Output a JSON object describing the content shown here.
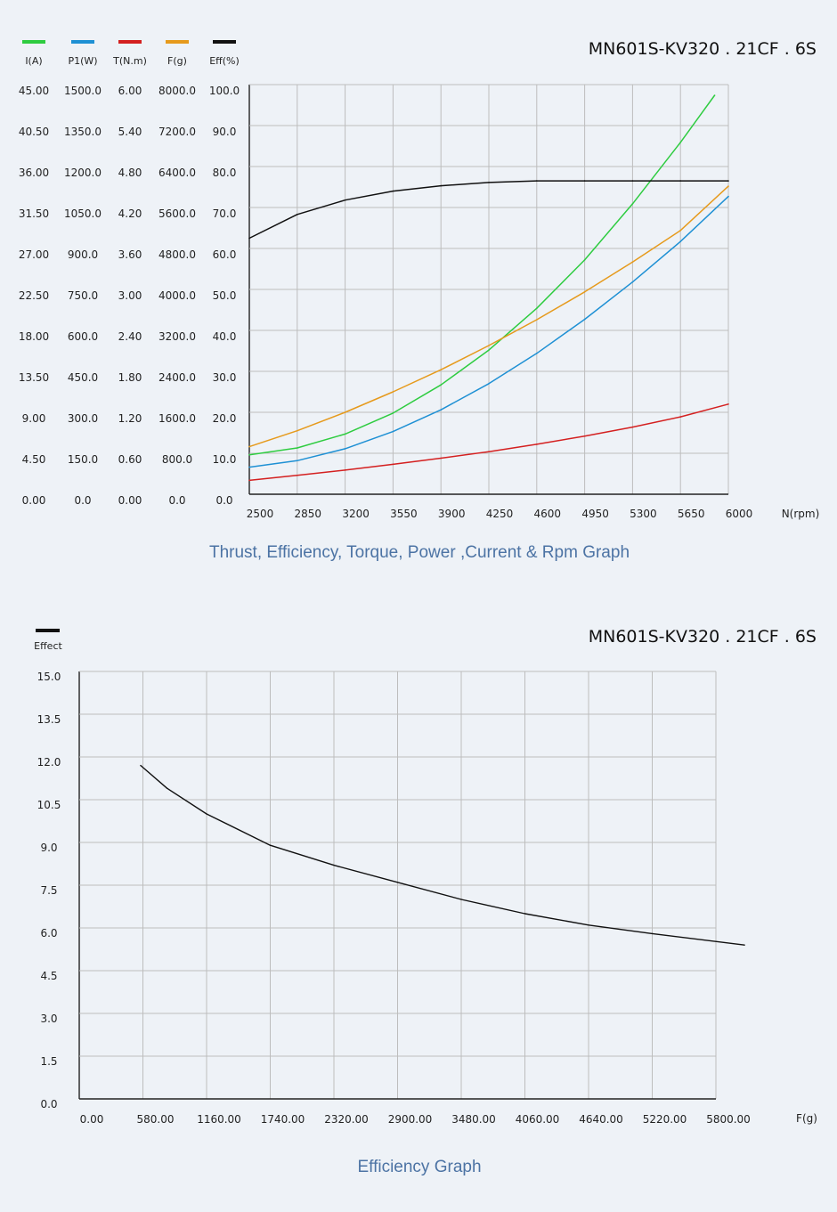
{
  "chart_data": [
    {
      "type": "line",
      "title": "MN601S-KV320 . 21CF . 6S",
      "caption": "Thrust, Efficiency, Torque, Power ,Current & Rpm Graph",
      "xlabel": "N(rpm)",
      "xlim": [
        2500,
        6000
      ],
      "x_ticks": [
        "2500",
        "2850",
        "3200",
        "3550",
        "3900",
        "4250",
        "4600",
        "4950",
        "5300",
        "5650",
        "6000"
      ],
      "axes": [
        {
          "label": "I(A)",
          "color": "#2ecc40",
          "ticks": [
            "45.00",
            "40.50",
            "36.00",
            "31.50",
            "27.00",
            "22.50",
            "18.00",
            "13.50",
            "9.00",
            "4.50",
            "0.00"
          ]
        },
        {
          "label": "P1(W)",
          "color": "#1e90d4",
          "ticks": [
            "1500.0",
            "1350.0",
            "1200.0",
            "1050.0",
            "900.0",
            "750.0",
            "600.0",
            "450.0",
            "300.0",
            "150.0",
            "0.0"
          ]
        },
        {
          "label": "T(N.m)",
          "color": "#d42020",
          "ticks": [
            "6.00",
            "5.40",
            "4.80",
            "4.20",
            "3.60",
            "3.00",
            "2.40",
            "1.80",
            "1.20",
            "0.60",
            "0.00"
          ]
        },
        {
          "label": "F(g)",
          "color": "#e69a1c",
          "ticks": [
            "8000.0",
            "7200.0",
            "6400.0",
            "5600.0",
            "4800.0",
            "4000.0",
            "3200.0",
            "2400.0",
            "1600.0",
            "800.0",
            "0.0"
          ]
        },
        {
          "label": "Eff(%)",
          "color": "#111111",
          "ticks": [
            "100.0",
            "90.0",
            "80.0",
            "70.0",
            "60.0",
            "50.0",
            "40.0",
            "30.0",
            "20.0",
            "10.0",
            "0.0"
          ]
        }
      ],
      "series": [
        {
          "name": "I(A)",
          "color": "#2ecc40",
          "ymax": 45,
          "x": [
            2500,
            2850,
            3200,
            3550,
            3900,
            4250,
            4600,
            4950,
            5300,
            5650,
            5900
          ],
          "y": [
            9.6,
            11.3,
            14.7,
            19.8,
            26.7,
            35.2,
            45.4,
            57.2,
            70.9,
            85.9,
            97.4
          ],
          "y_scale": "percent_of_axis"
        },
        {
          "name": "P1(W)",
          "color": "#1e90d4",
          "ymax": 1500,
          "x": [
            2500,
            2850,
            3200,
            3550,
            3900,
            4250,
            4600,
            4950,
            5300,
            5650,
            6000
          ],
          "y": [
            6.6,
            8.2,
            11.1,
            15.3,
            20.6,
            27.0,
            34.4,
            42.7,
            51.8,
            61.7,
            72.7
          ],
          "y_scale": "percent_of_axis"
        },
        {
          "name": "T(N.m)",
          "color": "#d42020",
          "ymax": 6,
          "x": [
            2500,
            2850,
            3200,
            3550,
            3900,
            4250,
            4600,
            4950,
            5300,
            5650,
            6000
          ],
          "y": [
            3.4,
            4.6,
            5.9,
            7.3,
            8.8,
            10.4,
            12.2,
            14.2,
            16.4,
            18.9,
            22.0
          ],
          "y_scale": "percent_of_axis"
        },
        {
          "name": "F(g)",
          "color": "#e69a1c",
          "ymax": 8000,
          "x": [
            2500,
            2850,
            3200,
            3550,
            3900,
            4250,
            4600,
            4950,
            5300,
            5650,
            6000
          ],
          "y": [
            11.6,
            15.5,
            20.0,
            25.0,
            30.4,
            36.3,
            42.6,
            49.4,
            56.7,
            64.4,
            75.2
          ],
          "y_scale": "percent_of_axis"
        },
        {
          "name": "Eff(%)",
          "color": "#111111",
          "ymax": 100,
          "x": [
            2500,
            2850,
            3200,
            3550,
            3900,
            4250,
            4600,
            4950,
            5300,
            5650,
            6000
          ],
          "y": [
            62.5,
            68.3,
            71.8,
            74.0,
            75.3,
            76.1,
            76.5,
            76.5,
            76.5,
            76.5,
            76.5
          ],
          "y_scale": "percent_of_axis"
        }
      ]
    },
    {
      "type": "line",
      "title": "MN601S-KV320 . 21CF . 6S",
      "caption": "Efficiency Graph",
      "xlabel": "F(g)",
      "ylabel": "Effect",
      "legend_color": "#111111",
      "xlim": [
        0,
        5800
      ],
      "ylim": [
        0,
        15
      ],
      "x_ticks": [
        "0.00",
        "580.00",
        "1160.00",
        "1740.00",
        "2320.00",
        "2900.00",
        "3480.00",
        "4060.00",
        "4640.00",
        "5220.00",
        "5800.00"
      ],
      "y_ticks": [
        "15.0",
        "13.5",
        "12.0",
        "10.5",
        "9.0",
        "7.5",
        "6.0",
        "4.5",
        "3.0",
        "1.5",
        "0.0"
      ],
      "series": [
        {
          "name": "Effect",
          "color": "#111111",
          "x": [
            560,
            800,
            1160,
            1740,
            2320,
            2900,
            3480,
            4060,
            4640,
            5220,
            6060
          ],
          "y": [
            11.7,
            10.9,
            10.0,
            8.9,
            8.2,
            7.6,
            7.0,
            6.5,
            6.1,
            5.8,
            5.4
          ]
        }
      ]
    }
  ]
}
